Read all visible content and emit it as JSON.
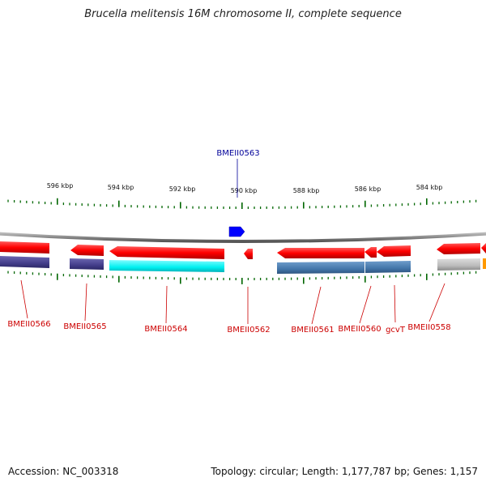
{
  "title": "Brucella melitensis 16M chromosome II, complete sequence",
  "footer": {
    "accession": "Accession: NC_003318",
    "topology": "Topology: circular; Length: 1,177,787 bp; Genes: 1,157"
  },
  "scale": {
    "labels": [
      "596 kbp",
      "594 kbp",
      "592 kbp",
      "590 kbp",
      "588 kbp",
      "586 kbp",
      "584 kbp"
    ]
  },
  "colors": {
    "forward_gene": "#ff0000",
    "reverse_gene_highlight": "#0000ff",
    "label_red": "#cc0000",
    "label_blue": "#000099",
    "tick": "#006600",
    "backbone": "#888888",
    "navy": "#4b4590",
    "cyan": "#00f0f0",
    "steelblue": "#4a80b0",
    "grey": "#bbbbbb",
    "orange": "#ff9900"
  },
  "genes": [
    {
      "name": "BMEII0566",
      "label_color": "red"
    },
    {
      "name": "BMEII0565",
      "label_color": "red"
    },
    {
      "name": "BMEII0564",
      "label_color": "red"
    },
    {
      "name": "BMEII0563",
      "label_color": "blue"
    },
    {
      "name": "BMEII0562",
      "label_color": "red"
    },
    {
      "name": "BMEII0561",
      "label_color": "red"
    },
    {
      "name": "BMEII0560",
      "label_color": "red"
    },
    {
      "name": "gcvT",
      "label_color": "red"
    },
    {
      "name": "BMEII0558",
      "label_color": "red"
    }
  ]
}
